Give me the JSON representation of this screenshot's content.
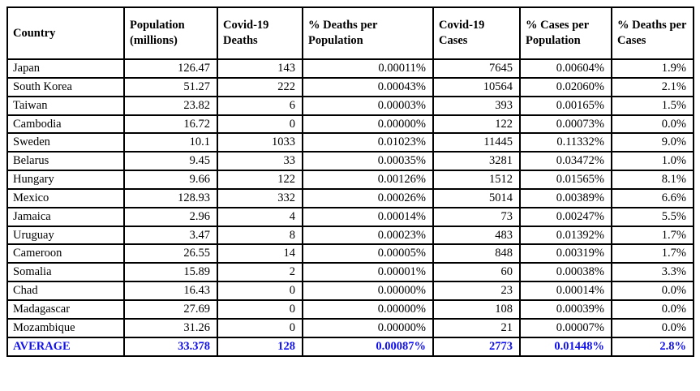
{
  "page": {
    "background_color": "#ffffff"
  },
  "table": {
    "border_color": "#000000",
    "text_color": "#000000",
    "average_text_color": "#1111ee",
    "columns": [
      {
        "key": "country",
        "label": "Country",
        "align": "left"
      },
      {
        "key": "population-millions",
        "label": "Population (millions)",
        "align": "right"
      },
      {
        "key": "covid19-deaths",
        "label": "Covid-19 Deaths",
        "align": "right"
      },
      {
        "key": "pct-deaths-per-population",
        "label": "% Deaths per Population",
        "align": "right"
      },
      {
        "key": "covid19-cases",
        "label": "Covid-19 Cases",
        "align": "right"
      },
      {
        "key": "pct-cases-per-population",
        "label": "% Cases per Population",
        "align": "right"
      },
      {
        "key": "pct-deaths-per-cases",
        "label": "% Deaths per Cases",
        "align": "right"
      }
    ],
    "rows": [
      [
        "Japan",
        "126.47",
        "143",
        "0.00011%",
        "7645",
        "0.00604%",
        "1.9%"
      ],
      [
        "South Korea",
        "51.27",
        "222",
        "0.00043%",
        "10564",
        "0.02060%",
        "2.1%"
      ],
      [
        "Taiwan",
        "23.82",
        "6",
        "0.00003%",
        "393",
        "0.00165%",
        "1.5%"
      ],
      [
        "Cambodia",
        "16.72",
        "0",
        "0.00000%",
        "122",
        "0.00073%",
        "0.0%"
      ],
      [
        "Sweden",
        "10.1",
        "1033",
        "0.01023%",
        "11445",
        "0.11332%",
        "9.0%"
      ],
      [
        "Belarus",
        "9.45",
        "33",
        "0.00035%",
        "3281",
        "0.03472%",
        "1.0%"
      ],
      [
        "Hungary",
        "9.66",
        "122",
        "0.00126%",
        "1512",
        "0.01565%",
        "8.1%"
      ],
      [
        "Mexico",
        "128.93",
        "332",
        "0.00026%",
        "5014",
        "0.00389%",
        "6.6%"
      ],
      [
        "Jamaica",
        "2.96",
        "4",
        "0.00014%",
        "73",
        "0.00247%",
        "5.5%"
      ],
      [
        "Uruguay",
        "3.47",
        "8",
        "0.00023%",
        "483",
        "0.01392%",
        "1.7%"
      ],
      [
        "Cameroon",
        "26.55",
        "14",
        "0.00005%",
        "848",
        "0.00319%",
        "1.7%"
      ],
      [
        "Somalia",
        "15.89",
        "2",
        "0.00001%",
        "60",
        "0.00038%",
        "3.3%"
      ],
      [
        "Chad",
        "16.43",
        "0",
        "0.00000%",
        "23",
        "0.00014%",
        "0.0%"
      ],
      [
        "Madagascar",
        "27.69",
        "0",
        "0.00000%",
        "108",
        "0.00039%",
        "0.0%"
      ],
      [
        "Mozambique",
        "31.26",
        "0",
        "0.00000%",
        "21",
        "0.00007%",
        "0.0%"
      ]
    ],
    "average_row": [
      "AVERAGE",
      "33.378",
      "128",
      "0.00087%",
      "2773",
      "0.01448%",
      "2.8%"
    ]
  }
}
